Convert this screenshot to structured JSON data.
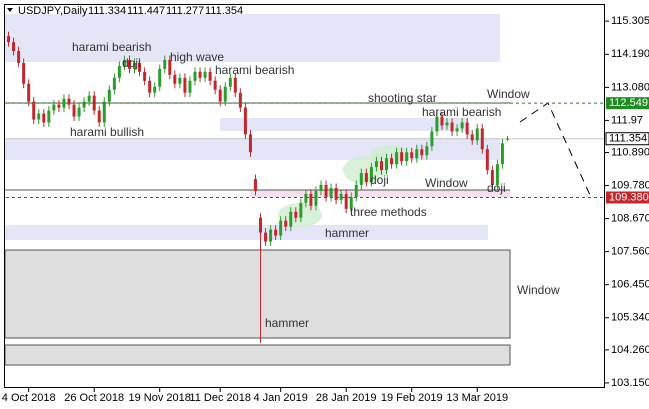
{
  "chart_data": {
    "type": "candlestick",
    "title": "USDJPY,Daily",
    "categories": [
      null,
      null,
      null,
      null,
      "4 Oct 2018",
      null,
      null,
      null,
      null,
      null,
      null,
      null,
      null,
      null,
      null,
      null,
      null,
      "26 Oct 2018",
      null,
      null,
      null,
      null,
      null,
      null,
      null,
      null,
      null,
      null,
      null,
      null,
      "19 Nov 2018",
      null,
      null,
      null,
      null,
      null,
      null,
      null,
      null,
      null,
      null,
      null,
      "11 Dec 2018",
      null,
      null,
      null,
      null,
      null,
      null,
      null,
      null,
      null,
      null,
      null,
      "4 Jan 2019",
      null,
      null,
      null,
      null,
      null,
      null,
      null,
      null,
      null,
      null,
      null,
      null,
      "28 Jan 2019",
      null,
      null,
      null,
      null,
      null,
      null,
      null,
      null,
      null,
      null,
      null,
      null,
      "19 Feb 2019",
      null,
      null,
      null,
      null,
      null,
      null,
      null,
      null,
      null,
      null,
      null,
      null,
      "13 Mar 2019",
      null,
      null,
      null,
      null,
      null,
      null
    ],
    "open": [
      114.8,
      114.6,
      114.3,
      113.9,
      113.2,
      112.6,
      112.0,
      112.2,
      111.9,
      112.3,
      112.5,
      112.4,
      112.7,
      112.5,
      112.1,
      112.4,
      112.6,
      112.8,
      112.3,
      111.9,
      112.6,
      113.0,
      113.4,
      113.8,
      114.0,
      113.7,
      113.9,
      113.6,
      113.3,
      112.9,
      113.1,
      113.7,
      114.0,
      113.5,
      113.2,
      113.4,
      112.9,
      113.3,
      113.6,
      113.4,
      113.6,
      113.3,
      113.0,
      112.6,
      113.1,
      113.4,
      112.9,
      112.4,
      111.5,
      110.0,
      108.7,
      108.2,
      107.9,
      108.3,
      108.1,
      108.6,
      108.4,
      108.9,
      108.7,
      109.2,
      109.5,
      109.1,
      109.6,
      109.8,
      109.4,
      109.7,
      109.3,
      109.5,
      109.0,
      109.4,
      109.8,
      110.2,
      109.9,
      110.4,
      110.6,
      110.3,
      110.7,
      110.5,
      110.9,
      110.6,
      110.9,
      110.7,
      111.0,
      110.8,
      111.1,
      111.6,
      112.1,
      111.8,
      111.9,
      111.6,
      111.7,
      111.9,
      111.5,
      111.3,
      111.7,
      111.0,
      110.3,
      109.8,
      110.5,
      111.334
    ],
    "high": [
      114.95,
      114.75,
      114.45,
      114.05,
      113.35,
      112.75,
      112.35,
      112.35,
      112.45,
      112.65,
      112.65,
      112.85,
      112.85,
      112.65,
      112.55,
      112.75,
      112.95,
      112.95,
      112.45,
      112.75,
      113.15,
      113.55,
      113.95,
      114.15,
      114.15,
      114.05,
      114.05,
      113.75,
      113.45,
      113.25,
      113.85,
      114.15,
      114.15,
      113.65,
      113.55,
      113.55,
      113.45,
      113.75,
      113.75,
      113.75,
      113.75,
      113.45,
      113.15,
      113.25,
      113.55,
      113.55,
      113.05,
      112.55,
      111.65,
      110.15,
      108.85,
      108.35,
      108.45,
      108.45,
      108.75,
      108.75,
      109.05,
      109.05,
      109.35,
      109.65,
      109.65,
      109.75,
      109.95,
      109.95,
      109.85,
      109.85,
      109.65,
      109.65,
      109.55,
      109.95,
      110.35,
      110.35,
      110.55,
      110.75,
      110.75,
      110.85,
      110.85,
      111.05,
      111.05,
      111.05,
      111.05,
      111.15,
      111.15,
      111.25,
      111.75,
      112.25,
      112.25,
      112.05,
      112.05,
      111.85,
      112.05,
      112.05,
      111.65,
      111.85,
      111.85,
      111.15,
      110.45,
      110.65,
      111.35,
      111.447
    ],
    "low": [
      114.45,
      114.15,
      113.75,
      113.05,
      112.45,
      111.85,
      111.85,
      111.75,
      111.75,
      112.15,
      112.25,
      112.25,
      112.35,
      111.95,
      111.95,
      112.25,
      112.45,
      112.15,
      111.75,
      111.75,
      112.45,
      112.85,
      113.25,
      113.65,
      113.55,
      113.55,
      113.45,
      113.15,
      112.75,
      112.75,
      112.95,
      113.55,
      113.35,
      113.05,
      113.05,
      112.75,
      112.75,
      113.15,
      113.25,
      113.25,
      113.15,
      112.85,
      112.45,
      112.45,
      112.95,
      112.75,
      112.25,
      111.35,
      110.75,
      109.45,
      104.5,
      107.75,
      107.75,
      107.95,
      107.95,
      108.25,
      108.25,
      108.55,
      108.55,
      109.05,
      108.95,
      108.95,
      109.45,
      109.25,
      109.25,
      109.15,
      109.15,
      108.85,
      108.85,
      109.25,
      109.65,
      109.75,
      109.75,
      110.25,
      110.15,
      110.15,
      110.35,
      110.35,
      110.45,
      110.45,
      110.55,
      110.55,
      110.65,
      110.65,
      110.95,
      111.45,
      111.65,
      111.65,
      111.45,
      111.45,
      111.55,
      111.35,
      111.15,
      111.15,
      110.85,
      110.15,
      109.65,
      109.65,
      110.35,
      111.277
    ],
    "close": [
      114.6,
      114.3,
      113.9,
      113.2,
      112.6,
      112.0,
      112.2,
      111.9,
      112.3,
      112.5,
      112.4,
      112.7,
      112.5,
      112.1,
      112.4,
      112.6,
      112.8,
      112.3,
      111.9,
      112.6,
      113.0,
      113.4,
      113.8,
      114.0,
      113.7,
      113.9,
      113.6,
      113.3,
      112.9,
      113.1,
      113.7,
      114.0,
      113.5,
      113.2,
      113.4,
      112.9,
      113.3,
      113.6,
      113.4,
      113.6,
      113.3,
      113.0,
      112.6,
      113.1,
      113.4,
      112.9,
      112.4,
      111.5,
      110.9,
      109.6,
      108.2,
      107.9,
      108.3,
      108.1,
      108.6,
      108.4,
      108.9,
      108.7,
      109.2,
      109.5,
      109.1,
      109.6,
      109.8,
      109.4,
      109.7,
      109.3,
      109.5,
      109.0,
      109.4,
      109.8,
      110.2,
      109.9,
      110.4,
      110.6,
      110.3,
      110.7,
      110.5,
      110.9,
      110.6,
      110.9,
      110.7,
      111.0,
      110.8,
      111.1,
      111.6,
      112.1,
      111.8,
      111.9,
      111.6,
      111.7,
      111.9,
      111.5,
      111.3,
      111.7,
      111.0,
      110.3,
      109.8,
      110.5,
      111.2,
      111.354
    ],
    "up_color": "#2e9b2e",
    "down_color": "#c0282e",
    "ylim": [
      102.98,
      115.88
    ],
    "yticks": [
      115.305,
      {
        "value": 114.19,
        "label": "114.190"
      },
      {
        "value": 113.08,
        "label": "113.080"
      },
      111.97,
      {
        "value": 110.89,
        "label": "110.890"
      },
      {
        "value": 109.78,
        "label": "109.780"
      },
      {
        "value": 108.67,
        "label": "108.670"
      },
      {
        "value": 107.56,
        "label": "107.560"
      },
      {
        "value": 106.45,
        "label": "106.450"
      },
      {
        "value": 105.34,
        "label": "105.340"
      },
      {
        "value": 104.26,
        "label": "104.260"
      },
      {
        "value": 103.15,
        "label": "103.150"
      }
    ],
    "levels": [
      {
        "value": 112.549,
        "color": "#1f8a1f"
      },
      {
        "value": {
          "value": 109.38,
          "label": "109.380"
        },
        "color": "#c0282e"
      }
    ],
    "annotations": [
      "harami bearish",
      "doji",
      "high wave",
      "harami bearish",
      "harami bullish",
      "shooting star",
      "Window",
      "harami bearish",
      "doji",
      "Window",
      "doji",
      "three methods",
      "hammer",
      "Window",
      "hammer"
    ]
  }
}
